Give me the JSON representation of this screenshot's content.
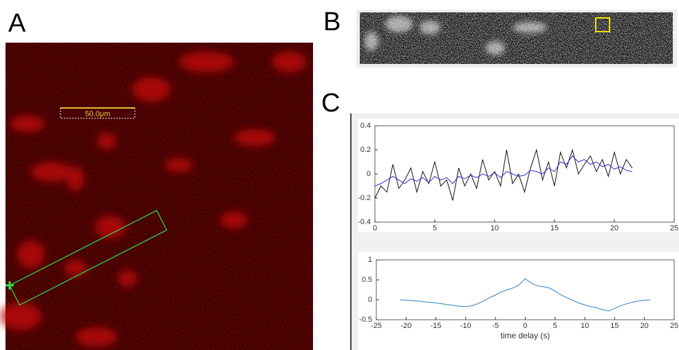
{
  "panels": [
    "A",
    "B",
    "C"
  ],
  "scale_bar": "50.0μm",
  "chart_data": [
    {
      "type": "line",
      "x": [
        0,
        0.5,
        1,
        1.5,
        2,
        2.5,
        3,
        3.5,
        4,
        4.5,
        5,
        5.5,
        6,
        6.5,
        7,
        7.5,
        8,
        8.5,
        9,
        9.5,
        10,
        10.5,
        11,
        11.5,
        12,
        12.5,
        13,
        13.5,
        14,
        14.5,
        15,
        15.5,
        16,
        16.5,
        17,
        17.5,
        18,
        18.5,
        19,
        19.5,
        20,
        20.5,
        21,
        21.5
      ],
      "series": [
        {
          "color": "#111111",
          "values": [
            -0.2,
            -0.1,
            -0.15,
            0.08,
            -0.12,
            -0.05,
            0.05,
            -0.15,
            0.02,
            -0.08,
            0.1,
            -0.1,
            -0.05,
            -0.22,
            0.05,
            -0.1,
            0.0,
            -0.12,
            0.12,
            -0.05,
            0.02,
            -0.1,
            0.2,
            -0.08,
            0.0,
            -0.15,
            0.05,
            0.2,
            -0.05,
            0.1,
            -0.1,
            0.18,
            0.05,
            0.2,
            0.0,
            0.08,
            0.15,
            0.02,
            0.12,
            -0.02,
            0.18,
            0.0,
            0.12,
            0.05
          ]
        },
        {
          "color": "#2b2bd6",
          "values": [
            -0.1,
            -0.08,
            -0.05,
            -0.02,
            -0.05,
            -0.08,
            -0.04,
            -0.06,
            -0.03,
            -0.07,
            -0.02,
            -0.05,
            -0.03,
            -0.08,
            -0.02,
            -0.04,
            -0.01,
            -0.03,
            0.0,
            -0.02,
            0.01,
            -0.03,
            0.02,
            0.0,
            -0.02,
            -0.01,
            0.03,
            0.02,
            0.0,
            0.05,
            0.02,
            0.1,
            0.08,
            0.15,
            0.1,
            0.12,
            0.08,
            0.1,
            0.06,
            0.08,
            0.04,
            0.06,
            0.03,
            0.02
          ]
        }
      ],
      "xlim": [
        0,
        25
      ],
      "xticks": [
        0,
        5,
        10,
        15,
        20,
        25
      ],
      "ylim": [
        -0.4,
        0.4
      ],
      "yticks": [
        -0.4,
        -0.2,
        0,
        0.2,
        0.4
      ]
    },
    {
      "type": "line",
      "x_label": "time delay (s)",
      "x": [
        -21,
        -20,
        -19,
        -18,
        -17,
        -16,
        -15,
        -14,
        -13,
        -12,
        -11,
        -10,
        -9,
        -8,
        -7,
        -6,
        -5,
        -4,
        -3,
        -2,
        -1,
        0,
        1,
        2,
        3,
        4,
        5,
        6,
        7,
        8,
        9,
        10,
        11,
        12,
        13,
        14,
        15,
        16,
        17,
        18,
        19,
        20,
        21
      ],
      "series": [
        {
          "color": "#2e7ec4",
          "values": [
            0,
            -0.01,
            -0.02,
            -0.03,
            -0.05,
            -0.06,
            -0.08,
            -0.1,
            -0.12,
            -0.14,
            -0.16,
            -0.17,
            -0.15,
            -0.1,
            -0.03,
            0.05,
            0.12,
            0.2,
            0.25,
            0.3,
            0.38,
            0.53,
            0.42,
            0.35,
            0.33,
            0.3,
            0.22,
            0.12,
            0.05,
            -0.02,
            -0.08,
            -0.13,
            -0.17,
            -0.2,
            -0.25,
            -0.28,
            -0.22,
            -0.15,
            -0.1,
            -0.06,
            -0.03,
            -0.01,
            0
          ]
        }
      ],
      "xlim": [
        -25,
        25
      ],
      "xticks": [
        -25,
        -20,
        -15,
        -10,
        -5,
        0,
        5,
        10,
        15,
        20,
        25
      ],
      "ylim": [
        -0.5,
        1
      ],
      "yticks": [
        -0.5,
        0,
        0.5,
        1
      ]
    }
  ]
}
